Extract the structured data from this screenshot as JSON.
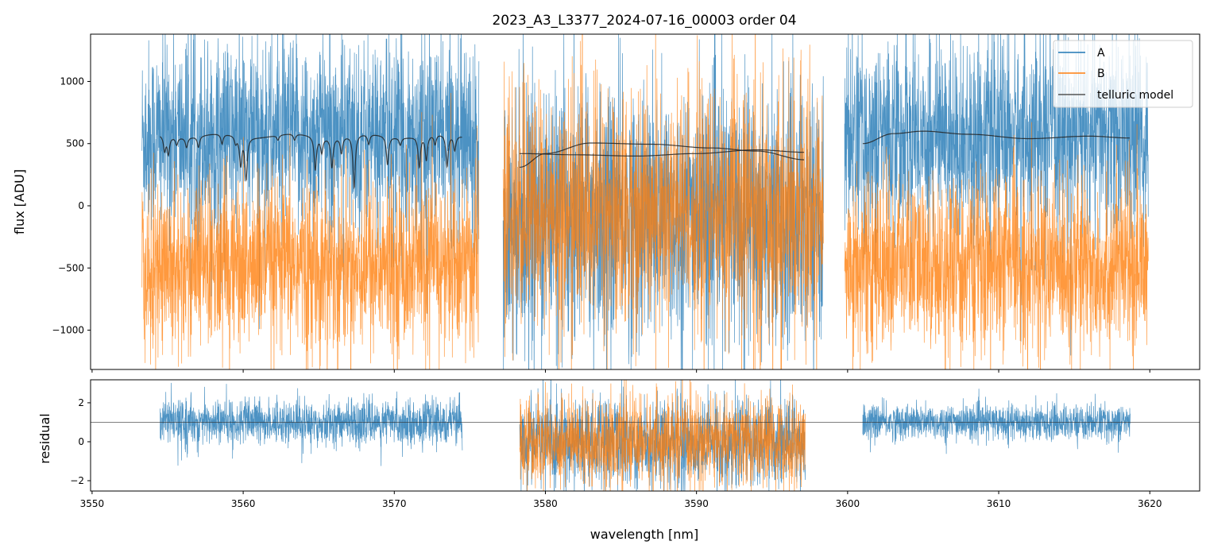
{
  "chart_data": [
    {
      "type": "line",
      "title": "2023_A3_L3377_2024-07-16_00003  order 04",
      "xlabel": "",
      "ylabel": "flux [ADU]",
      "xlim": [
        3549.9,
        3623.3
      ],
      "ylim": [
        -1316,
        1380
      ],
      "yticks": [
        1000,
        500,
        0,
        -500,
        -1000
      ],
      "ytick_labels": [
        "1000",
        "500",
        "0",
        "−500",
        "−1000"
      ],
      "grid": false,
      "legend": {
        "placement": "top-right",
        "entries": [
          "A",
          "B",
          "telluric model"
        ]
      },
      "colors": {
        "A": "#1f77b4",
        "B": "#ff7f0e",
        "telluric": "#222222"
      },
      "series": [
        {
          "name": "A",
          "segments": [
            {
              "x_range": [
                3553.3,
                3575.6
              ],
              "mean": 560,
              "std": 380
            },
            {
              "x_range": [
                3577.2,
                3598.4
              ],
              "mean": -80,
              "std": 520
            },
            {
              "x_range": [
                3599.8,
                3619.9
              ],
              "mean": 560,
              "std": 380
            }
          ]
        },
        {
          "name": "B",
          "segments": [
            {
              "x_range": [
                3553.3,
                3575.6
              ],
              "mean": -480,
              "std": 340
            },
            {
              "x_range": [
                3577.2,
                3598.4
              ],
              "mean": -60,
              "std": 480
            },
            {
              "x_range": [
                3599.8,
                3619.9
              ],
              "mean": -480,
              "std": 340
            }
          ]
        },
        {
          "name": "telluric model",
          "segments": [
            {
              "x_range": [
                3554.5,
                3574.5
              ],
              "baseline": 565,
              "dips": [
                [
                  3554.8,
                  120
                ],
                [
                  3555.05,
                  140
                ],
                [
                  3555.6,
                  60
                ],
                [
                  3556.25,
                  80
                ],
                [
                  3557.04,
                  90
                ],
                [
                  3558.6,
                  80
                ],
                [
                  3559.5,
                  60
                ],
                [
                  3559.83,
                  230
                ],
                [
                  3560.19,
                  340
                ],
                [
                  3562.3,
                  40
                ],
                [
                  3563.4,
                  50
                ],
                [
                  3564.77,
                  270
                ],
                [
                  3565.2,
                  120
                ],
                [
                  3565.87,
                  240
                ],
                [
                  3566.5,
                  130
                ],
                [
                  3567.34,
                  430
                ],
                [
                  3568.3,
                  80
                ],
                [
                  3569.55,
                  230
                ],
                [
                  3570.4,
                  60
                ],
                [
                  3571.65,
                  250
                ],
                [
                  3572.12,
                  200
                ],
                [
                  3572.7,
                  80
                ],
                [
                  3573.49,
                  260
                ],
                [
                  3574.0,
                  120
                ]
              ]
            },
            {
              "x": [
                3578.3,
                3580,
                3583,
                3587,
                3591,
                3594,
                3597.2
              ],
              "y": [
                310,
                420,
                505,
                495,
                465,
                440,
                370
              ]
            },
            {
              "x": [
                3578.3,
                3582,
                3586,
                3590,
                3594,
                3597.2
              ],
              "y": [
                420,
                410,
                400,
                420,
                450,
                430
              ]
            },
            {
              "x": [
                3601,
                3603,
                3605,
                3608,
                3612,
                3616,
                3618.7
              ],
              "y": [
                500,
                580,
                600,
                575,
                540,
                560,
                545
              ]
            }
          ]
        }
      ]
    },
    {
      "type": "line",
      "title": "",
      "xlabel": "wavelength [nm]",
      "ylabel": "residual",
      "xlim": [
        3549.9,
        3623.3
      ],
      "ylim": [
        -2.53,
        3.18
      ],
      "xticks": [
        3550,
        3560,
        3570,
        3580,
        3590,
        3600,
        3610,
        3620
      ],
      "xtick_labels": [
        "3550",
        "3560",
        "3570",
        "3580",
        "3590",
        "3600",
        "3610",
        "3620"
      ],
      "yticks": [
        2,
        0,
        -2
      ],
      "ytick_labels": [
        "2",
        "0",
        "−2"
      ],
      "hline": 1,
      "series": [
        {
          "name": "A",
          "segments": [
            {
              "x_range": [
                3554.5,
                3574.5
              ],
              "mean": 1.0,
              "std": 0.55
            },
            {
              "x_range": [
                3578.3,
                3597.2
              ],
              "mean": 0.0,
              "std": 1.1
            },
            {
              "x_range": [
                3601.0,
                3618.7
              ],
              "mean": 1.0,
              "std": 0.45
            }
          ]
        },
        {
          "name": "B",
          "segments": [
            {
              "x_range": [
                3578.3,
                3597.2
              ],
              "mean": 0.0,
              "std": 1.1
            }
          ]
        }
      ]
    }
  ]
}
